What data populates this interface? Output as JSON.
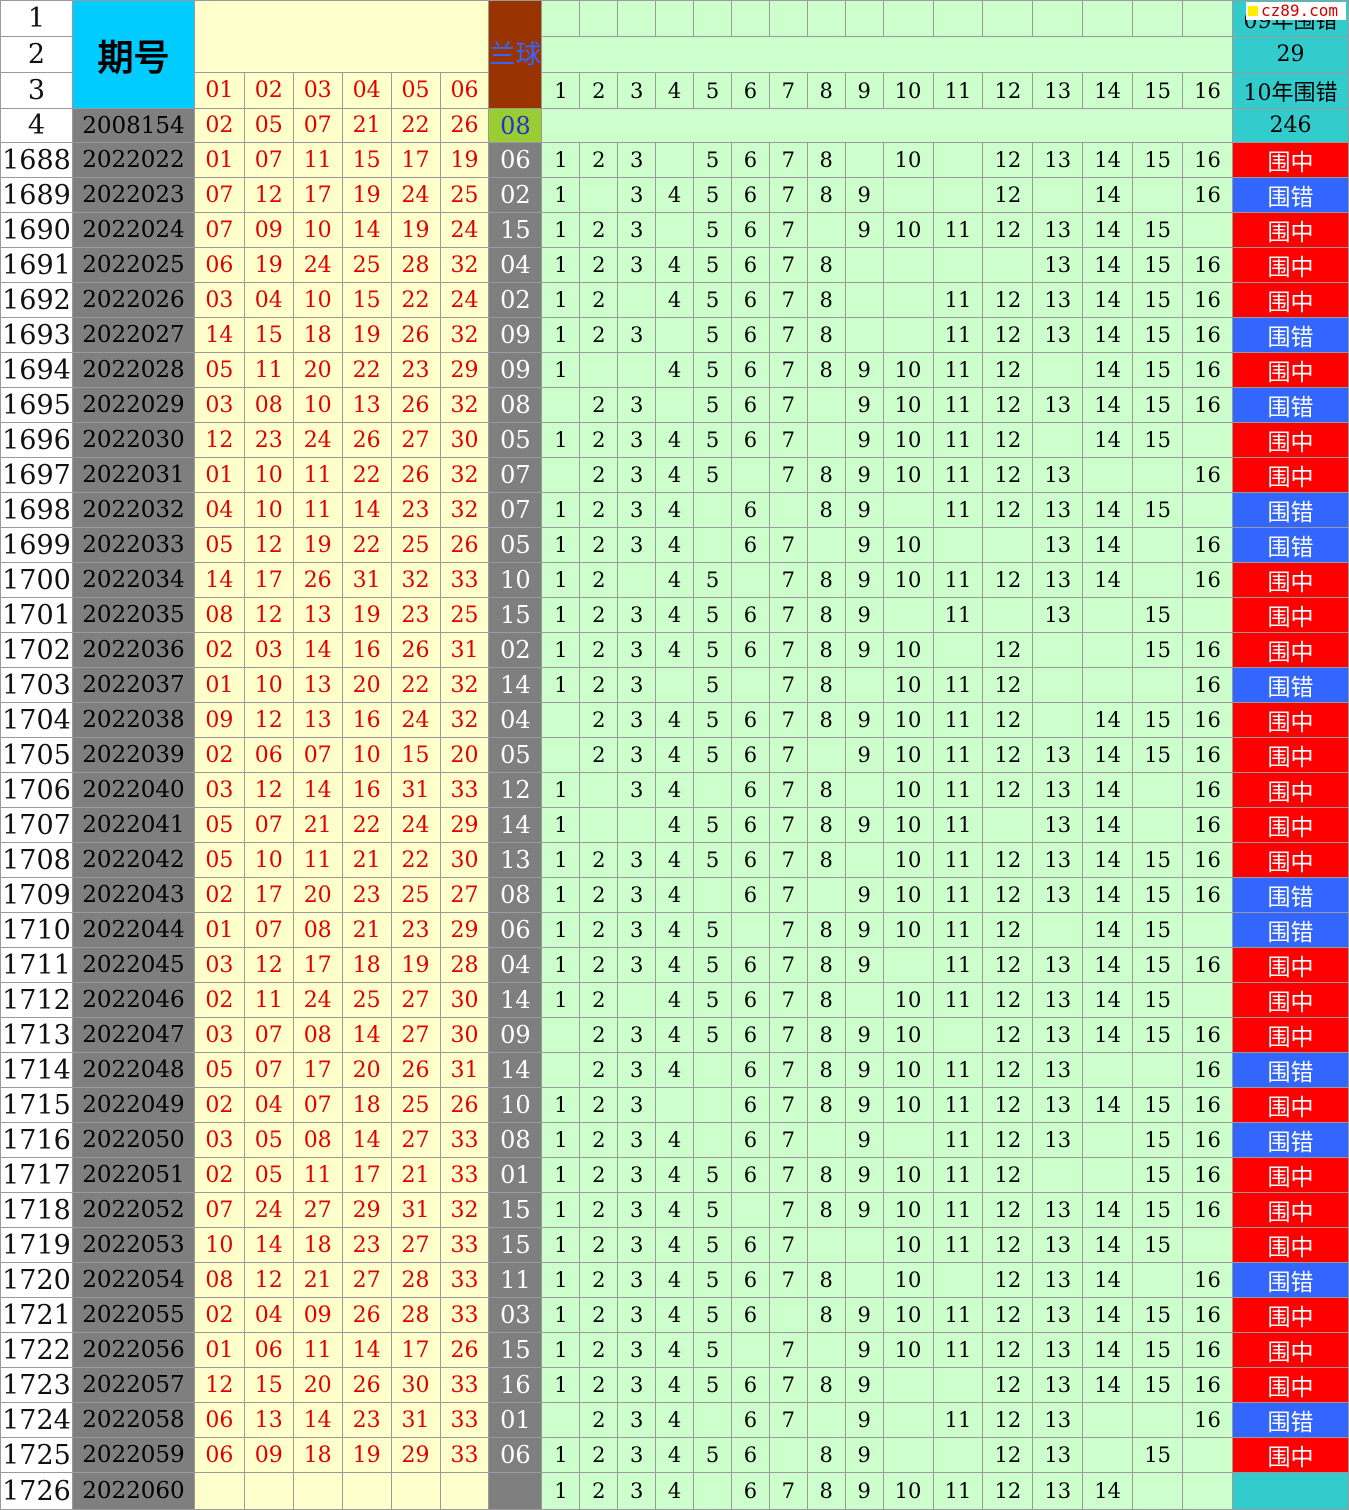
{
  "watermark": "cz89.com",
  "header": {
    "period_label": "期号",
    "blue_label": "兰球",
    "red_cols": [
      "01",
      "02",
      "03",
      "04",
      "05",
      "06"
    ],
    "num_cols": [
      "1",
      "2",
      "3",
      "4",
      "5",
      "6",
      "7",
      "8",
      "9",
      "10",
      "11",
      "12",
      "13",
      "14",
      "15",
      "16"
    ],
    "stat1_label": "09年围错",
    "stat1_value": "29",
    "stat2_label": "10年围错",
    "stat2_value": "246",
    "header_row_nums": [
      "1",
      "2",
      "3",
      "4"
    ]
  },
  "first_row": {
    "period": "2008154",
    "reds": [
      "02",
      "05",
      "07",
      "21",
      "22",
      "26"
    ],
    "blue": "08"
  },
  "rows": [
    {
      "n": "1688",
      "p": "2022022",
      "r": [
        "01",
        "07",
        "11",
        "15",
        "17",
        "19"
      ],
      "b": "06",
      "m": [
        1,
        2,
        3,
        null,
        5,
        6,
        7,
        8,
        null,
        10,
        null,
        12,
        13,
        14,
        15,
        16
      ],
      "res": "围中"
    },
    {
      "n": "1689",
      "p": "2022023",
      "r": [
        "07",
        "12",
        "17",
        "19",
        "24",
        "25"
      ],
      "b": "02",
      "m": [
        1,
        null,
        3,
        4,
        5,
        6,
        7,
        8,
        9,
        null,
        null,
        12,
        null,
        14,
        null,
        16
      ],
      "res": "围错"
    },
    {
      "n": "1690",
      "p": "2022024",
      "r": [
        "07",
        "09",
        "10",
        "14",
        "19",
        "24"
      ],
      "b": "15",
      "m": [
        1,
        2,
        3,
        null,
        5,
        6,
        7,
        null,
        9,
        10,
        11,
        12,
        13,
        14,
        15,
        null
      ],
      "res": "围中"
    },
    {
      "n": "1691",
      "p": "2022025",
      "r": [
        "06",
        "19",
        "24",
        "25",
        "28",
        "32"
      ],
      "b": "04",
      "m": [
        1,
        2,
        3,
        4,
        5,
        6,
        7,
        8,
        null,
        null,
        null,
        null,
        13,
        14,
        15,
        16
      ],
      "res": "围中"
    },
    {
      "n": "1692",
      "p": "2022026",
      "r": [
        "03",
        "04",
        "10",
        "15",
        "22",
        "24"
      ],
      "b": "02",
      "m": [
        1,
        2,
        null,
        4,
        5,
        6,
        7,
        8,
        null,
        null,
        11,
        12,
        13,
        14,
        15,
        16
      ],
      "res": "围中"
    },
    {
      "n": "1693",
      "p": "2022027",
      "r": [
        "14",
        "15",
        "18",
        "19",
        "26",
        "32"
      ],
      "b": "09",
      "m": [
        1,
        2,
        3,
        null,
        5,
        6,
        7,
        8,
        null,
        null,
        11,
        12,
        13,
        14,
        15,
        16
      ],
      "res": "围错"
    },
    {
      "n": "1694",
      "p": "2022028",
      "r": [
        "05",
        "11",
        "20",
        "22",
        "23",
        "29"
      ],
      "b": "09",
      "m": [
        1,
        null,
        null,
        4,
        5,
        6,
        7,
        8,
        9,
        10,
        11,
        12,
        null,
        14,
        15,
        16
      ],
      "res": "围中"
    },
    {
      "n": "1695",
      "p": "2022029",
      "r": [
        "03",
        "08",
        "10",
        "13",
        "26",
        "32"
      ],
      "b": "08",
      "m": [
        null,
        2,
        3,
        null,
        5,
        6,
        7,
        null,
        9,
        10,
        11,
        12,
        13,
        14,
        15,
        16
      ],
      "res": "围错"
    },
    {
      "n": "1696",
      "p": "2022030",
      "r": [
        "12",
        "23",
        "24",
        "26",
        "27",
        "30"
      ],
      "b": "05",
      "m": [
        1,
        2,
        3,
        4,
        5,
        6,
        7,
        null,
        9,
        10,
        11,
        12,
        null,
        14,
        15,
        null
      ],
      "res": "围中"
    },
    {
      "n": "1697",
      "p": "2022031",
      "r": [
        "01",
        "10",
        "11",
        "22",
        "26",
        "32"
      ],
      "b": "07",
      "m": [
        null,
        2,
        3,
        4,
        5,
        null,
        7,
        8,
        9,
        10,
        11,
        12,
        13,
        null,
        null,
        16
      ],
      "res": "围中"
    },
    {
      "n": "1698",
      "p": "2022032",
      "r": [
        "04",
        "10",
        "11",
        "14",
        "23",
        "32"
      ],
      "b": "07",
      "m": [
        1,
        2,
        3,
        4,
        null,
        6,
        null,
        8,
        9,
        null,
        11,
        12,
        13,
        14,
        15,
        null
      ],
      "res": "围错"
    },
    {
      "n": "1699",
      "p": "2022033",
      "r": [
        "05",
        "12",
        "19",
        "22",
        "25",
        "26"
      ],
      "b": "05",
      "m": [
        1,
        2,
        3,
        4,
        null,
        6,
        7,
        null,
        9,
        10,
        null,
        null,
        13,
        14,
        null,
        16
      ],
      "res": "围错"
    },
    {
      "n": "1700",
      "p": "2022034",
      "r": [
        "14",
        "17",
        "26",
        "31",
        "32",
        "33"
      ],
      "b": "10",
      "m": [
        1,
        2,
        null,
        4,
        5,
        null,
        7,
        8,
        9,
        10,
        11,
        12,
        13,
        14,
        null,
        16
      ],
      "res": "围中"
    },
    {
      "n": "1701",
      "p": "2022035",
      "r": [
        "08",
        "12",
        "13",
        "19",
        "23",
        "25"
      ],
      "b": "15",
      "m": [
        1,
        2,
        3,
        4,
        5,
        6,
        7,
        8,
        9,
        null,
        11,
        null,
        13,
        null,
        15,
        null
      ],
      "res": "围中"
    },
    {
      "n": "1702",
      "p": "2022036",
      "r": [
        "02",
        "03",
        "14",
        "16",
        "26",
        "31"
      ],
      "b": "02",
      "m": [
        1,
        2,
        3,
        4,
        5,
        6,
        7,
        8,
        9,
        10,
        null,
        12,
        null,
        null,
        15,
        16
      ],
      "res": "围中"
    },
    {
      "n": "1703",
      "p": "2022037",
      "r": [
        "01",
        "10",
        "13",
        "20",
        "22",
        "32"
      ],
      "b": "14",
      "m": [
        1,
        2,
        3,
        null,
        5,
        null,
        7,
        8,
        null,
        10,
        11,
        12,
        null,
        null,
        null,
        16
      ],
      "res": "围错"
    },
    {
      "n": "1704",
      "p": "2022038",
      "r": [
        "09",
        "12",
        "13",
        "16",
        "24",
        "32"
      ],
      "b": "04",
      "m": [
        null,
        2,
        3,
        4,
        5,
        6,
        7,
        8,
        9,
        10,
        11,
        12,
        null,
        14,
        15,
        16
      ],
      "res": "围中"
    },
    {
      "n": "1705",
      "p": "2022039",
      "r": [
        "02",
        "06",
        "07",
        "10",
        "15",
        "20"
      ],
      "b": "05",
      "m": [
        null,
        2,
        3,
        4,
        5,
        6,
        7,
        null,
        9,
        10,
        11,
        12,
        13,
        14,
        15,
        16
      ],
      "res": "围中"
    },
    {
      "n": "1706",
      "p": "2022040",
      "r": [
        "03",
        "12",
        "14",
        "16",
        "31",
        "33"
      ],
      "b": "12",
      "m": [
        1,
        null,
        3,
        4,
        null,
        6,
        7,
        8,
        null,
        10,
        11,
        12,
        13,
        14,
        null,
        16
      ],
      "res": "围中"
    },
    {
      "n": "1707",
      "p": "2022041",
      "r": [
        "05",
        "07",
        "21",
        "22",
        "24",
        "29"
      ],
      "b": "14",
      "m": [
        1,
        null,
        null,
        4,
        5,
        6,
        7,
        8,
        9,
        10,
        11,
        null,
        13,
        14,
        null,
        16
      ],
      "res": "围中"
    },
    {
      "n": "1708",
      "p": "2022042",
      "r": [
        "05",
        "10",
        "11",
        "21",
        "22",
        "30"
      ],
      "b": "13",
      "m": [
        1,
        2,
        3,
        4,
        5,
        6,
        7,
        8,
        null,
        10,
        11,
        12,
        13,
        14,
        15,
        16
      ],
      "res": "围中"
    },
    {
      "n": "1709",
      "p": "2022043",
      "r": [
        "02",
        "17",
        "20",
        "23",
        "25",
        "27"
      ],
      "b": "08",
      "m": [
        1,
        2,
        3,
        4,
        null,
        6,
        7,
        null,
        9,
        10,
        11,
        12,
        13,
        14,
        15,
        16
      ],
      "res": "围错"
    },
    {
      "n": "1710",
      "p": "2022044",
      "r": [
        "01",
        "07",
        "08",
        "21",
        "23",
        "29"
      ],
      "b": "06",
      "m": [
        1,
        2,
        3,
        4,
        5,
        null,
        7,
        8,
        9,
        10,
        11,
        12,
        null,
        14,
        15,
        null
      ],
      "res": "围错"
    },
    {
      "n": "1711",
      "p": "2022045",
      "r": [
        "03",
        "12",
        "17",
        "18",
        "19",
        "28"
      ],
      "b": "04",
      "m": [
        1,
        2,
        3,
        4,
        5,
        6,
        7,
        8,
        9,
        null,
        11,
        12,
        13,
        14,
        15,
        16
      ],
      "res": "围中"
    },
    {
      "n": "1712",
      "p": "2022046",
      "r": [
        "02",
        "11",
        "24",
        "25",
        "27",
        "30"
      ],
      "b": "14",
      "m": [
        1,
        2,
        null,
        4,
        5,
        6,
        7,
        8,
        null,
        10,
        11,
        12,
        13,
        14,
        15,
        null
      ],
      "res": "围中"
    },
    {
      "n": "1713",
      "p": "2022047",
      "r": [
        "03",
        "07",
        "08",
        "14",
        "27",
        "30"
      ],
      "b": "09",
      "m": [
        null,
        2,
        3,
        4,
        5,
        6,
        7,
        8,
        9,
        10,
        null,
        12,
        13,
        14,
        15,
        16
      ],
      "res": "围中"
    },
    {
      "n": "1714",
      "p": "2022048",
      "r": [
        "05",
        "07",
        "17",
        "20",
        "26",
        "31"
      ],
      "b": "14",
      "m": [
        null,
        2,
        3,
        4,
        null,
        6,
        7,
        8,
        9,
        10,
        11,
        12,
        13,
        null,
        null,
        16
      ],
      "res": "围错"
    },
    {
      "n": "1715",
      "p": "2022049",
      "r": [
        "02",
        "04",
        "07",
        "18",
        "25",
        "26"
      ],
      "b": "10",
      "m": [
        1,
        2,
        3,
        null,
        null,
        6,
        7,
        8,
        9,
        10,
        11,
        12,
        13,
        14,
        15,
        16
      ],
      "res": "围中"
    },
    {
      "n": "1716",
      "p": "2022050",
      "r": [
        "03",
        "05",
        "08",
        "14",
        "27",
        "33"
      ],
      "b": "08",
      "m": [
        1,
        2,
        3,
        4,
        null,
        6,
        7,
        null,
        9,
        null,
        11,
        12,
        13,
        null,
        15,
        16
      ],
      "res": "围错"
    },
    {
      "n": "1717",
      "p": "2022051",
      "r": [
        "02",
        "05",
        "11",
        "17",
        "21",
        "33"
      ],
      "b": "01",
      "m": [
        1,
        2,
        3,
        4,
        5,
        6,
        7,
        8,
        9,
        10,
        11,
        12,
        null,
        null,
        15,
        16
      ],
      "res": "围中"
    },
    {
      "n": "1718",
      "p": "2022052",
      "r": [
        "07",
        "24",
        "27",
        "29",
        "31",
        "32"
      ],
      "b": "15",
      "m": [
        1,
        2,
        3,
        4,
        5,
        null,
        7,
        8,
        9,
        10,
        11,
        12,
        13,
        14,
        15,
        16
      ],
      "res": "围中"
    },
    {
      "n": "1719",
      "p": "2022053",
      "r": [
        "10",
        "14",
        "18",
        "23",
        "27",
        "33"
      ],
      "b": "15",
      "m": [
        1,
        2,
        3,
        4,
        5,
        6,
        7,
        null,
        null,
        10,
        11,
        12,
        13,
        14,
        15,
        null
      ],
      "res": "围中"
    },
    {
      "n": "1720",
      "p": "2022054",
      "r": [
        "08",
        "12",
        "21",
        "27",
        "28",
        "33"
      ],
      "b": "11",
      "m": [
        1,
        2,
        3,
        4,
        5,
        6,
        7,
        8,
        null,
        10,
        null,
        12,
        13,
        14,
        null,
        16
      ],
      "res": "围错"
    },
    {
      "n": "1721",
      "p": "2022055",
      "r": [
        "02",
        "04",
        "09",
        "26",
        "28",
        "33"
      ],
      "b": "03",
      "m": [
        1,
        2,
        3,
        4,
        5,
        6,
        null,
        8,
        9,
        10,
        11,
        12,
        13,
        14,
        15,
        16
      ],
      "res": "围中"
    },
    {
      "n": "1722",
      "p": "2022056",
      "r": [
        "01",
        "06",
        "11",
        "14",
        "17",
        "26"
      ],
      "b": "15",
      "m": [
        1,
        2,
        3,
        4,
        5,
        null,
        7,
        null,
        9,
        10,
        11,
        12,
        13,
        14,
        15,
        16
      ],
      "res": "围中"
    },
    {
      "n": "1723",
      "p": "2022057",
      "r": [
        "12",
        "15",
        "20",
        "26",
        "30",
        "33"
      ],
      "b": "16",
      "m": [
        1,
        2,
        3,
        4,
        5,
        6,
        7,
        8,
        9,
        null,
        null,
        12,
        13,
        14,
        15,
        16
      ],
      "res": "围中"
    },
    {
      "n": "1724",
      "p": "2022058",
      "r": [
        "06",
        "13",
        "14",
        "23",
        "31",
        "33"
      ],
      "b": "01",
      "m": [
        null,
        2,
        3,
        4,
        null,
        6,
        7,
        null,
        9,
        null,
        11,
        12,
        13,
        null,
        null,
        16
      ],
      "res": "围错"
    },
    {
      "n": "1725",
      "p": "2022059",
      "r": [
        "06",
        "09",
        "18",
        "19",
        "29",
        "33"
      ],
      "b": "06",
      "m": [
        1,
        2,
        3,
        4,
        5,
        6,
        null,
        8,
        9,
        null,
        null,
        12,
        13,
        null,
        15,
        null
      ],
      "res": "围中"
    },
    {
      "n": "1726",
      "p": "2022060",
      "r": [
        "",
        "",
        "",
        "",
        "",
        ""
      ],
      "b": "",
      "m": [
        1,
        2,
        3,
        4,
        null,
        6,
        7,
        8,
        9,
        10,
        11,
        12,
        13,
        14,
        null,
        null
      ],
      "res": ""
    }
  ],
  "colors": {
    "hit": "#ff0000",
    "miss": "#3366ff",
    "green": "#ccffcc",
    "yellow": "#ffffcc",
    "gray": "#7f7f7f",
    "cyan": "#33cccc"
  }
}
